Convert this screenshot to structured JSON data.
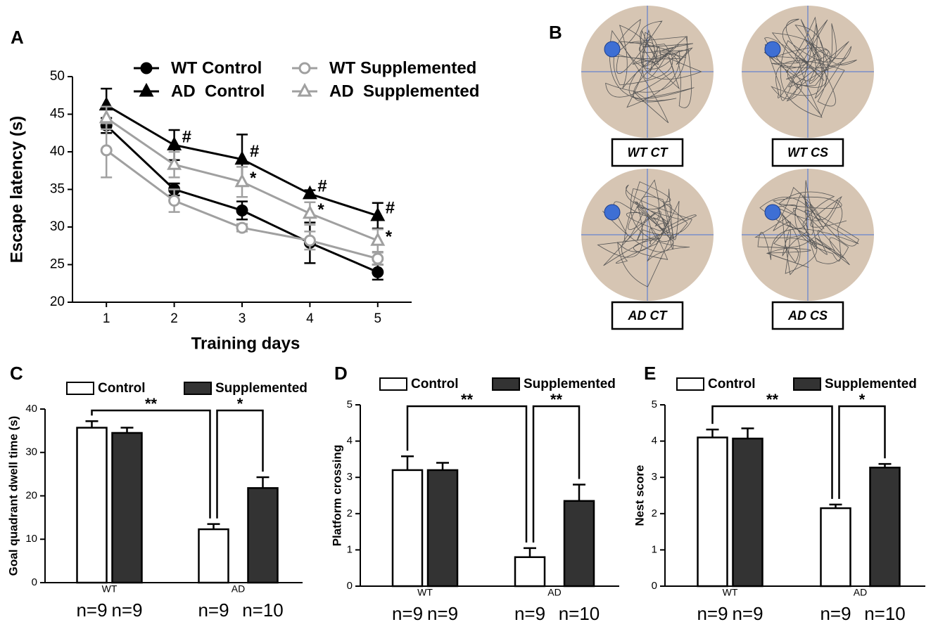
{
  "chart_data": [
    {
      "panel": "A",
      "type": "line",
      "x_label": "Training days",
      "y_label": "Escape latency (s)",
      "x": [
        1,
        2,
        3,
        4,
        5
      ],
      "xlim": [
        0.5,
        5.5
      ],
      "xticks": [
        1,
        2,
        3,
        4,
        5
      ],
      "ylim": [
        20,
        50
      ],
      "yticks": [
        20,
        25,
        30,
        35,
        40,
        45,
        50
      ],
      "series": [
        {
          "name": "WT Control",
          "color": "#000000",
          "marker": "circle",
          "filled": true,
          "values": [
            43.5,
            35,
            32.2,
            27.9,
            24
          ],
          "errors": [
            1,
            0.8,
            1.2,
            2.7,
            1
          ],
          "flags": [
            null,
            null,
            null,
            null,
            null
          ]
        },
        {
          "name": "AD  Control",
          "color": "#000000",
          "marker": "triangle",
          "filled": true,
          "values": [
            46.2,
            40.9,
            39,
            34.4,
            31.5
          ],
          "errors": [
            2.2,
            2,
            3.3,
            0.5,
            1.7
          ],
          "flags": [
            null,
            "#",
            "#",
            "#",
            "#"
          ]
        },
        {
          "name": "WT Supplemented",
          "color": "#a0a0a0",
          "marker": "circle",
          "filled": false,
          "values": [
            40.2,
            33.5,
            29.9,
            28.2,
            25.8
          ],
          "errors": [
            3.6,
            1.5,
            0.5,
            1.2,
            0.8
          ],
          "flags": [
            null,
            null,
            null,
            null,
            null
          ]
        },
        {
          "name": "AD  Supplemented",
          "color": "#a0a0a0",
          "marker": "triangle",
          "filled": false,
          "values": [
            44.5,
            38.3,
            36,
            31.8,
            28.2
          ],
          "errors": [
            1.5,
            1.7,
            2,
            1.5,
            1.5
          ],
          "flags": [
            null,
            null,
            "*",
            "*",
            "*"
          ]
        }
      ]
    },
    {
      "panel": "B",
      "type": "image",
      "labels": [
        "WT CT",
        "WT CS",
        "AD CT",
        "AD CS"
      ]
    },
    {
      "panel": "C",
      "type": "bar",
      "y_label": "Goal quadrant dwell time (s)",
      "categories": [
        "WT",
        "AD"
      ],
      "ylim": [
        0,
        40
      ],
      "yticks": [
        0,
        10,
        20,
        30,
        40
      ],
      "series": [
        {
          "name": "Control",
          "color": "#ffffff",
          "values": [
            35.7,
            12.3
          ],
          "errors": [
            1.5,
            1.2
          ]
        },
        {
          "name": "Supplemented",
          "color": "#333333",
          "values": [
            34.5,
            21.8
          ],
          "errors": [
            1.2,
            2.5
          ]
        }
      ],
      "sample_sizes": [
        [
          "n=9",
          "n=9"
        ],
        [
          "n=9",
          "n=10"
        ]
      ],
      "comparisons": [
        {
          "label": "**",
          "bars": [
            [
              0,
              0
            ],
            [
              1,
              0
            ]
          ]
        },
        {
          "label": "*",
          "bars": [
            [
              1,
              0
            ],
            [
              1,
              1
            ]
          ]
        }
      ]
    },
    {
      "panel": "D",
      "type": "bar",
      "y_label": "Platform crossing",
      "categories": [
        "WT",
        "AD"
      ],
      "ylim": [
        0,
        5
      ],
      "yticks": [
        0,
        1,
        2,
        3,
        4,
        5
      ],
      "series": [
        {
          "name": "Control",
          "color": "#ffffff",
          "values": [
            3.2,
            0.8
          ],
          "errors": [
            0.38,
            0.25
          ]
        },
        {
          "name": "Supplemented",
          "color": "#333333",
          "values": [
            3.2,
            2.35
          ],
          "errors": [
            0.2,
            0.45
          ]
        }
      ],
      "sample_sizes": [
        [
          "n=9",
          "n=9"
        ],
        [
          "n=9",
          "n=10"
        ]
      ],
      "comparisons": [
        {
          "label": "**",
          "bars": [
            [
              0,
              0
            ],
            [
              1,
              0
            ]
          ]
        },
        {
          "label": "**",
          "bars": [
            [
              1,
              0
            ],
            [
              1,
              1
            ]
          ]
        }
      ]
    },
    {
      "panel": "E",
      "type": "bar",
      "y_label": "Nest score",
      "categories": [
        "WT",
        "AD"
      ],
      "ylim": [
        0,
        5
      ],
      "yticks": [
        0,
        1,
        2,
        3,
        4,
        5
      ],
      "series": [
        {
          "name": "Control",
          "color": "#ffffff",
          "values": [
            4.1,
            2.15
          ],
          "errors": [
            0.22,
            0.1
          ]
        },
        {
          "name": "Supplemented",
          "color": "#333333",
          "values": [
            4.07,
            3.27
          ],
          "errors": [
            0.28,
            0.1
          ]
        }
      ],
      "sample_sizes": [
        [
          "n=9",
          "n=9"
        ],
        [
          "n=9",
          "n=10"
        ]
      ],
      "comparisons": [
        {
          "label": "**",
          "bars": [
            [
              0,
              0
            ],
            [
              1,
              0
            ]
          ]
        },
        {
          "label": "*",
          "bars": [
            [
              1,
              0
            ],
            [
              1,
              1
            ]
          ]
        }
      ]
    }
  ]
}
